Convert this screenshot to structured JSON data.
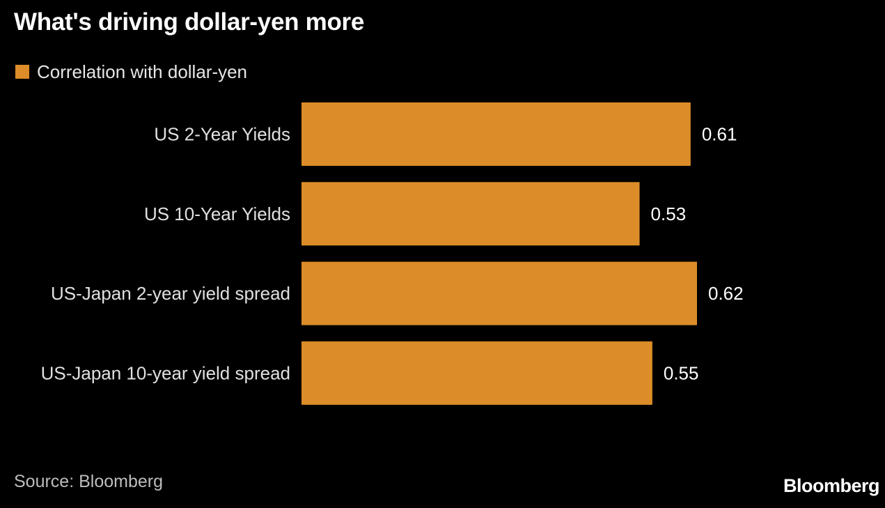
{
  "title": "What's driving dollar-yen more",
  "source": "Source: Bloomberg",
  "brand": "Bloomberg",
  "colors": {
    "background": "#000000",
    "bar": "#dc8c28"
  },
  "legend": {
    "label": "Correlation with dollar-yen"
  },
  "chart_data": {
    "type": "bar",
    "orientation": "horizontal",
    "title": "What's driving dollar-yen more",
    "categories": [
      "US 2-Year Yields",
      "US 10-Year Yields",
      "US-Japan 2-year yield spread",
      "US-Japan 10-year yield spread"
    ],
    "series": [
      {
        "name": "Correlation with dollar-yen",
        "values": [
          0.61,
          0.53,
          0.62,
          0.55
        ],
        "labels": [
          "0.61",
          "0.53",
          "0.62",
          "0.55"
        ]
      }
    ],
    "xlim": [
      0,
      0.62
    ],
    "grid": false,
    "legend_position": "top-left"
  }
}
